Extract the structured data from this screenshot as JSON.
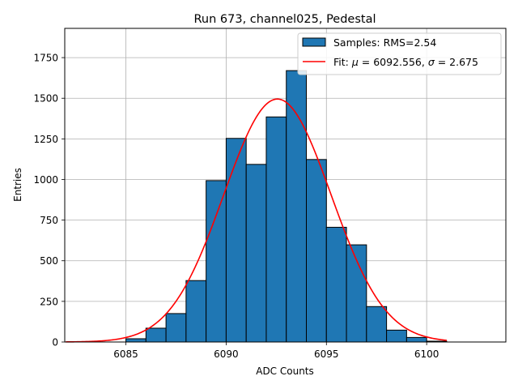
{
  "chart_data": {
    "type": "bar",
    "title": "Run 673, channel025, Pedestal",
    "xlabel": "ADC Counts",
    "ylabel": "Entries",
    "xlim": [
      6081.95,
      6103.95
    ],
    "ylim": [
      0,
      1930
    ],
    "x_ticks": [
      6085,
      6090,
      6095,
      6100
    ],
    "y_ticks": [
      0,
      250,
      500,
      750,
      1000,
      1250,
      1500,
      1750
    ],
    "grid": true,
    "legend_position": "top-right",
    "bar_color": "#1f77b4",
    "fit_color": "#ff0000",
    "histogram": {
      "name": "Samples: RMS=2.54",
      "bin_edges": [
        6085,
        6086,
        6087,
        6088,
        6089,
        6090,
        6091,
        6092,
        6093,
        6094,
        6095,
        6096,
        6097,
        6098,
        6099,
        6100,
        6101
      ],
      "counts": [
        20,
        85,
        175,
        378,
        993,
        1253,
        1093,
        1385,
        1670,
        1123,
        706,
        598,
        218,
        73,
        28,
        5
      ]
    },
    "fit": {
      "name": "Fit: μ = 6092.556, σ = 2.675",
      "label_prefix": "Fit: ",
      "mu_symbol": "μ",
      "mu_text": " = 6092.556, ",
      "sigma_symbol": "σ",
      "sigma_text": " = 2.675",
      "mu": 6092.556,
      "sigma": 2.675,
      "amplitude": 1495,
      "x_range": [
        6082,
        6101
      ]
    }
  }
}
